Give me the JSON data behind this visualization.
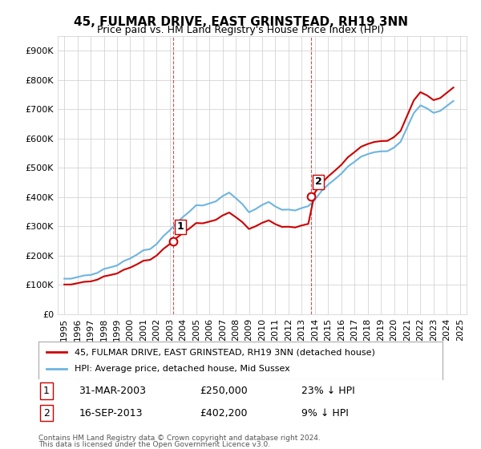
{
  "title": "45, FULMAR DRIVE, EAST GRINSTEAD, RH19 3NN",
  "subtitle": "Price paid vs. HM Land Registry's House Price Index (HPI)",
  "legend_line1": "45, FULMAR DRIVE, EAST GRINSTEAD, RH19 3NN (detached house)",
  "legend_line2": "HPI: Average price, detached house, Mid Sussex",
  "table_rows": [
    {
      "num": "1",
      "date": "31-MAR-2003",
      "price": "£250,000",
      "hpi": "23% ↓ HPI"
    },
    {
      "num": "2",
      "date": "16-SEP-2013",
      "price": "£402,200",
      "hpi": "9% ↓ HPI"
    }
  ],
  "footnote1": "Contains HM Land Registry data © Crown copyright and database right 2024.",
  "footnote2": "This data is licensed under the Open Government Licence v3.0.",
  "sale1_year": 2003.25,
  "sale1_price": 250000,
  "sale2_year": 2013.71,
  "sale2_price": 402200,
  "ylim": [
    0,
    950000
  ],
  "hpi_color": "#6eb5e0",
  "sale_color": "#cc0000",
  "vline_color": "#cc0000",
  "background_color": "#ffffff",
  "grid_color": "#cccccc"
}
